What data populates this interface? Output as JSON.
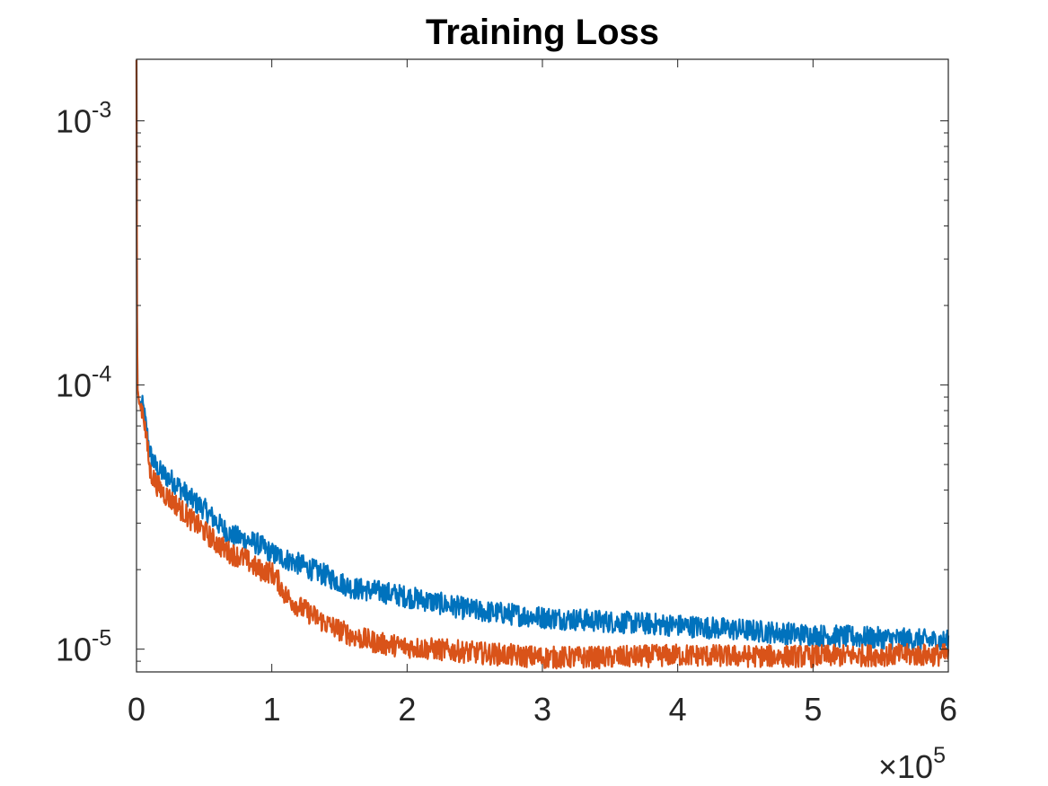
{
  "chart_data": {
    "type": "line",
    "title": "Training Loss",
    "xlabel": "",
    "ylabel": "",
    "yscale": "log",
    "xlim": [
      0,
      600000
    ],
    "ylim": [
      8.2e-06,
      0.00171
    ],
    "x_ticks": [
      0,
      100000,
      200000,
      300000,
      400000,
      500000,
      600000
    ],
    "x_tick_labels": [
      "0",
      "1",
      "2",
      "3",
      "4",
      "5",
      "6"
    ],
    "x_multiplier": {
      "base": "×10",
      "exponent": "5"
    },
    "y_ticks": [
      1e-05,
      0.0001,
      0.001
    ],
    "y_tick_labels": [
      {
        "base": "10",
        "exponent": "-5"
      },
      {
        "base": "10",
        "exponent": "-4"
      },
      {
        "base": "10",
        "exponent": "-3"
      }
    ],
    "grid": false,
    "legend": "none",
    "series": [
      {
        "color": "#0072BD",
        "x": [
          0,
          500,
          2000,
          5000,
          10000,
          15000,
          20000,
          30000,
          40000,
          50000,
          60000,
          70000,
          80000,
          90000,
          100000,
          110000,
          120000,
          140000,
          160000,
          180000,
          200000,
          250000,
          300000,
          350000,
          400000,
          450000,
          500000,
          550000,
          600000
        ],
        "y": [
          0.0017,
          0.0001,
          8.5e-05,
          8.2e-05,
          5.5e-05,
          4.8e-05,
          4.6e-05,
          4.2e-05,
          3.7e-05,
          3.4e-05,
          3e-05,
          2.7e-05,
          2.6e-05,
          2.5e-05,
          2.3e-05,
          2.2e-05,
          2.1e-05,
          1.9e-05,
          1.7e-05,
          1.65e-05,
          1.58e-05,
          1.4e-05,
          1.32e-05,
          1.27e-05,
          1.23e-05,
          1.18e-05,
          1.13e-05,
          1.1e-05,
          1.07e-05
        ]
      },
      {
        "color": "#D95319",
        "x": [
          0,
          500,
          2000,
          5000,
          10000,
          15000,
          20000,
          30000,
          40000,
          50000,
          60000,
          70000,
          80000,
          90000,
          100000,
          105000,
          110000,
          120000,
          140000,
          160000,
          180000,
          200000,
          250000,
          300000,
          350000,
          400000,
          450000,
          500000,
          550000,
          600000
        ],
        "y": [
          0.0017,
          0.0001,
          8.5e-05,
          8e-05,
          4.7e-05,
          4.2e-05,
          3.9e-05,
          3.5e-05,
          3.1e-05,
          2.8e-05,
          2.5e-05,
          2.3e-05,
          2.2e-05,
          2e-05,
          1.95e-05,
          1.8e-05,
          1.6e-05,
          1.45e-05,
          1.25e-05,
          1.12e-05,
          1.05e-05,
          1.02e-05,
          9.7e-06,
          9.3e-06,
          9.3e-06,
          9.5e-06,
          9.4e-06,
          9.4e-06,
          9.5e-06,
          9.5e-06
        ]
      }
    ]
  }
}
